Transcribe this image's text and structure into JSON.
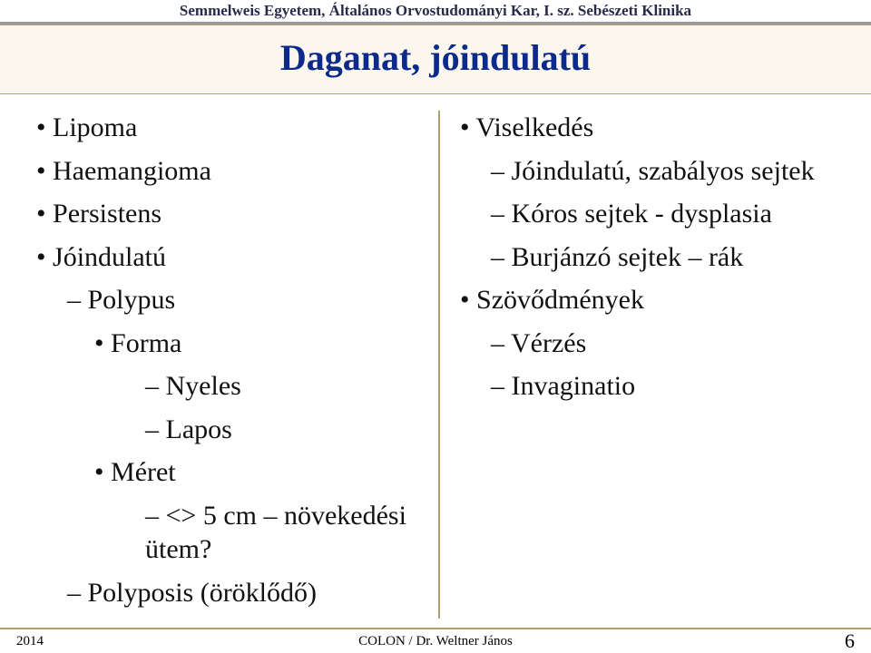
{
  "header": {
    "institution": "Semmelweis Egyetem, Általános Orvostudományi Kar, I. sz. Sebészeti Klinika"
  },
  "title": "Daganat, jóindulatú",
  "left_column": {
    "items": [
      "Lipoma",
      "Haemangioma",
      "Persistens",
      "Jóindulatú"
    ],
    "sub_polypus": "Polypus",
    "forma": "Forma",
    "forma_items": [
      "Nyeles",
      "Lapos"
    ],
    "meret": "Méret",
    "meret_items": [
      "<> 5 cm – növekedési ütem?"
    ],
    "polyposis": "Polyposis (öröklődő)"
  },
  "right_column": {
    "viselkedes": "Viselkedés",
    "viselkedes_items": [
      "Jóindulatú, szabályos sejtek",
      "Kóros sejtek - dysplasia",
      "Burjánzó sejtek – rák"
    ],
    "szovodmenyek": "Szövődmények",
    "szovodmenyek_items": [
      "Vérzés",
      "Invaginatio"
    ]
  },
  "footer": {
    "date": "2014",
    "center": "COLON / Dr. Weltner János",
    "page": "6"
  },
  "colors": {
    "title_color": "#0b2a8a",
    "band_bg": "#fbf7ef",
    "band_border": "#b0a070",
    "text": "#111111"
  },
  "typography": {
    "title_fontsize_pt": 30,
    "body_fontsize_pt": 22,
    "header_fontsize_pt": 13,
    "font_family": "Times New Roman"
  }
}
